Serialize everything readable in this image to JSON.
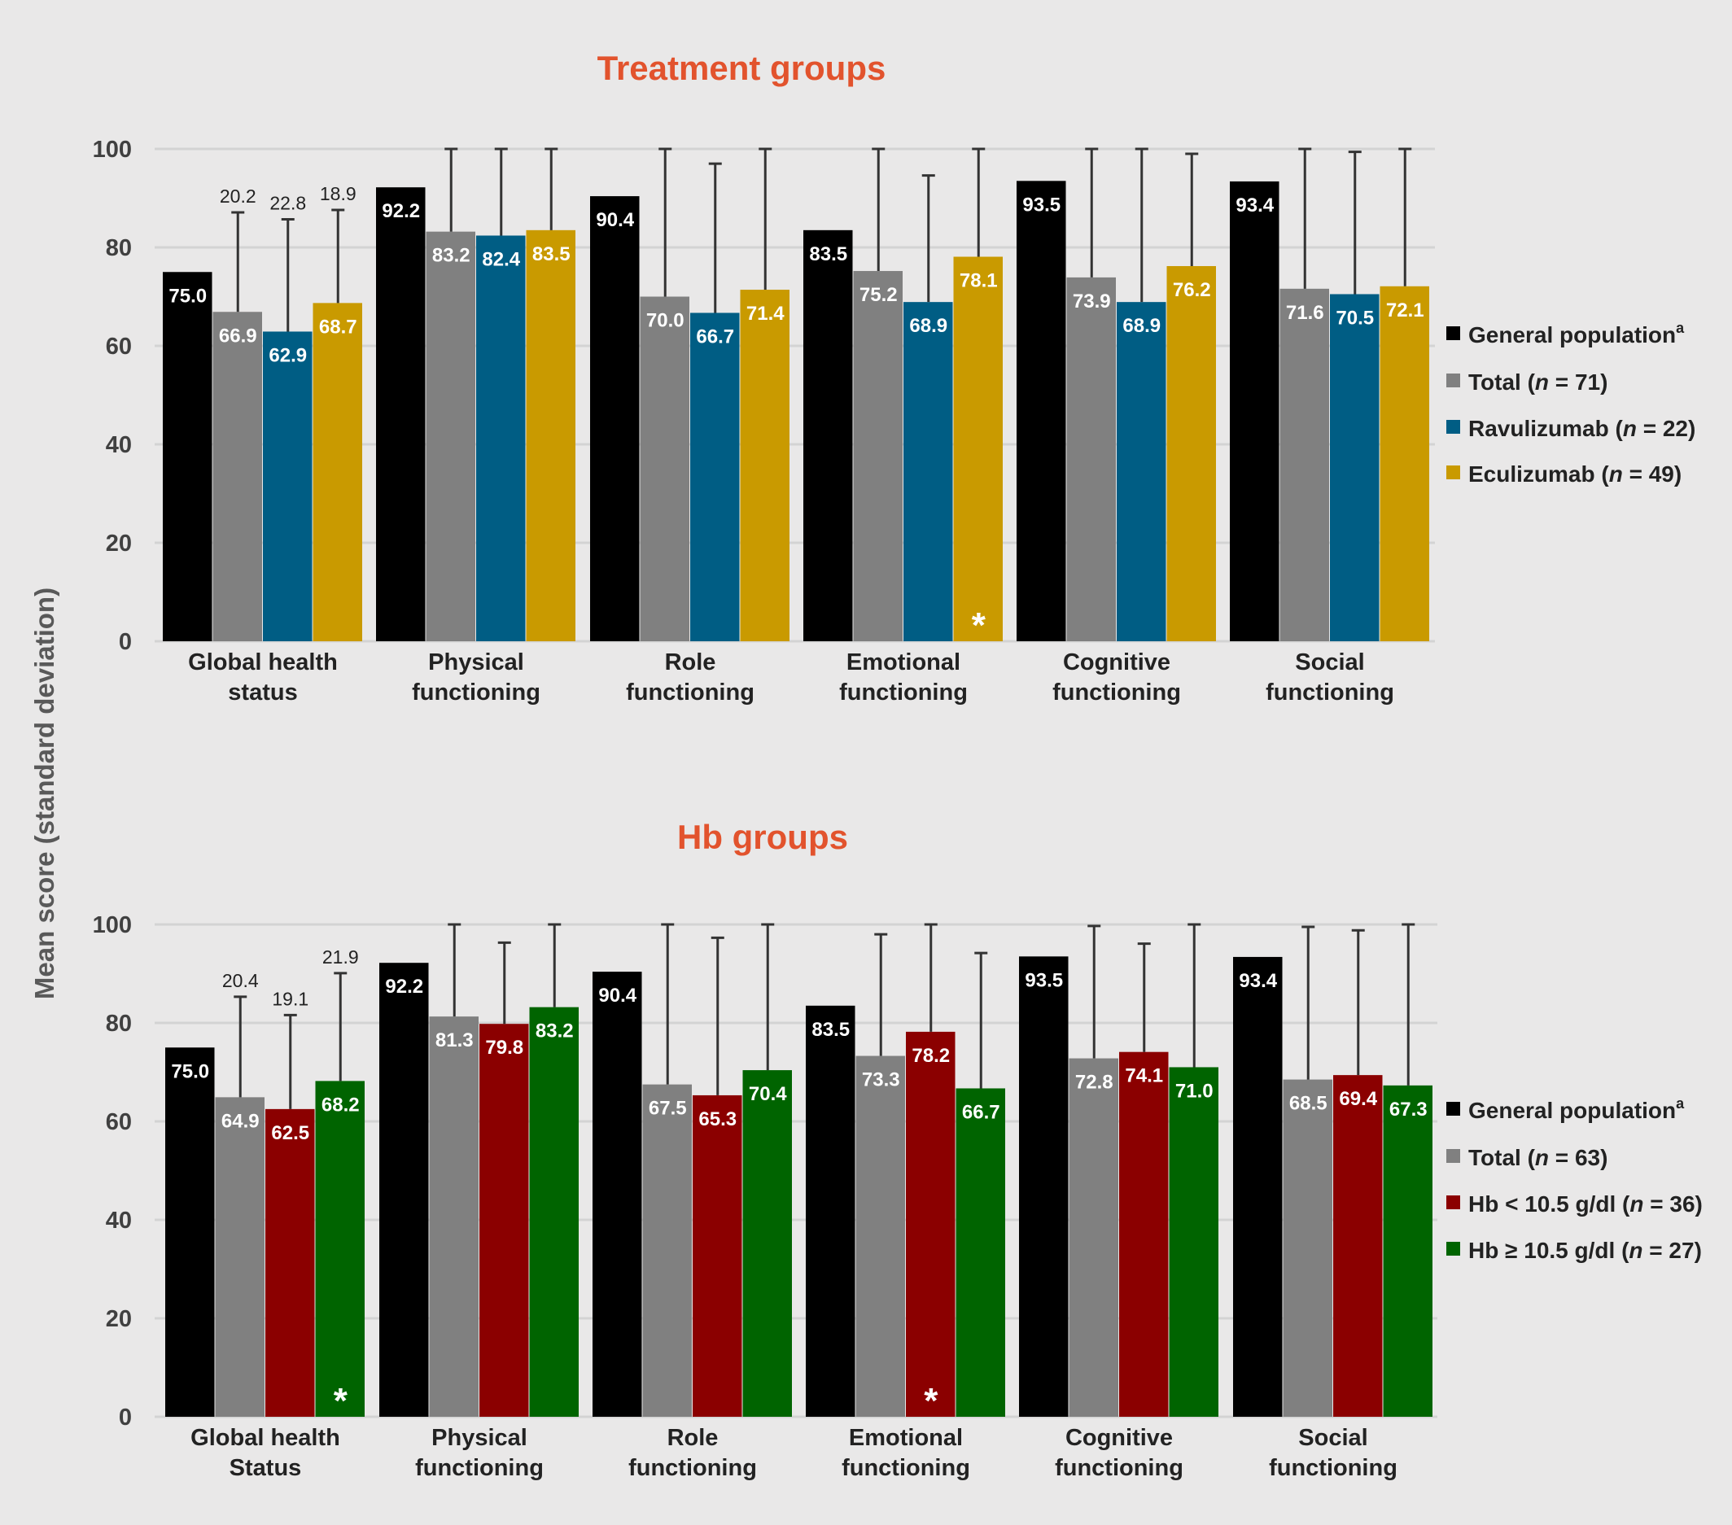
{
  "y_axis_label": "Mean score (standard deviation)",
  "colors": {
    "background": "#e9e8e8",
    "title": "#e2532d",
    "gridline": "#d3d3d3",
    "text": "#222222",
    "label_white": "#ffffff",
    "error_bar": "#333333"
  },
  "chart_data": [
    {
      "type": "bar",
      "title": "Treatment groups",
      "ylim": [
        0,
        100
      ],
      "yticks": [
        "0",
        "20",
        "40",
        "60",
        "80",
        "100"
      ],
      "grid": true,
      "legend_position": "right",
      "categories": [
        [
          "Global health",
          "status"
        ],
        [
          "Physical",
          "functioning"
        ],
        [
          "Role",
          "functioning"
        ],
        [
          "Emotional",
          "functioning"
        ],
        [
          "Cognitive",
          "functioning"
        ],
        [
          "Social",
          "functioning"
        ]
      ],
      "series": [
        {
          "name": "General population",
          "superscript": "a",
          "n_label": "",
          "color": "#000000",
          "values": [
            75.0,
            92.2,
            90.4,
            83.5,
            93.5,
            93.4
          ],
          "labels": [
            "75.0",
            "92.2",
            "90.4",
            "83.5",
            "93.5",
            "93.4"
          ],
          "sd_labels": [
            "",
            "",
            "",
            "",
            "",
            ""
          ],
          "markers": [
            "",
            "",
            "",
            "",
            "",
            ""
          ]
        },
        {
          "name": "Total (",
          "n_label": "n",
          "n_value": " = 71)",
          "color": "#808080",
          "values": [
            66.9,
            83.2,
            70.0,
            75.2,
            73.9,
            71.6
          ],
          "labels": [
            "66.9",
            "83.2",
            "70.0",
            "75.2",
            "73.9",
            "71.6"
          ],
          "sd_labels": [
            "20.2",
            "",
            "",
            "",
            "",
            ""
          ],
          "markers": [
            "",
            "",
            "",
            "",
            "",
            ""
          ]
        },
        {
          "name": "Ravulizumab (",
          "n_label": "n",
          "n_value": " = 22)",
          "color": "#005d84",
          "values": [
            62.9,
            82.4,
            66.7,
            68.9,
            68.9,
            70.5
          ],
          "labels": [
            "62.9",
            "82.4",
            "66.7",
            "68.9",
            "68.9",
            "70.5"
          ],
          "sd_labels": [
            "22.8",
            "",
            "",
            "",
            "",
            ""
          ],
          "markers": [
            "",
            "",
            "",
            "",
            "",
            ""
          ]
        },
        {
          "name": "Eculizumab (",
          "n_label": "n",
          "n_value": " = 49)",
          "color": "#c99a00",
          "values": [
            68.7,
            83.5,
            71.4,
            78.1,
            76.2,
            72.1
          ],
          "labels": [
            "68.7",
            "83.5",
            "71.4",
            "78.1",
            "76.2",
            "72.1"
          ],
          "sd_labels": [
            "18.9",
            "",
            "",
            "",
            "",
            ""
          ],
          "markers": [
            "",
            "",
            "",
            "*",
            "",
            ""
          ]
        }
      ],
      "error_tops": [
        [
          null,
          null,
          null,
          null,
          null,
          null
        ],
        [
          87.1,
          100,
          100,
          100,
          100,
          100
        ],
        [
          85.7,
          100,
          97.0,
          94.6,
          100,
          99.4
        ],
        [
          87.6,
          100,
          100,
          100,
          99.0,
          100
        ]
      ]
    },
    {
      "type": "bar",
      "title": "Hb groups",
      "ylim": [
        0,
        100
      ],
      "yticks": [
        "0",
        "20",
        "40",
        "60",
        "80",
        "100"
      ],
      "grid": true,
      "legend_position": "right",
      "categories": [
        [
          "Global health",
          "Status"
        ],
        [
          "Physical",
          "functioning"
        ],
        [
          "Role",
          "functioning"
        ],
        [
          "Emotional",
          "functioning"
        ],
        [
          "Cognitive",
          "functioning"
        ],
        [
          "Social",
          "functioning"
        ]
      ],
      "series": [
        {
          "name": "General population",
          "superscript": "a",
          "n_label": "",
          "color": "#000000",
          "values": [
            75.0,
            92.2,
            90.4,
            83.5,
            93.5,
            93.4
          ],
          "labels": [
            "75.0",
            "92.2",
            "90.4",
            "83.5",
            "93.5",
            "93.4"
          ],
          "sd_labels": [
            "",
            "",
            "",
            "",
            "",
            ""
          ],
          "markers": [
            "",
            "",
            "",
            "",
            "",
            ""
          ]
        },
        {
          "name": "Total (",
          "n_label": "n",
          "n_value": " = 63)",
          "color": "#808080",
          "values": [
            64.9,
            81.3,
            67.5,
            73.3,
            72.8,
            68.5
          ],
          "labels": [
            "64.9",
            "81.3",
            "67.5",
            "73.3",
            "72.8",
            "68.5"
          ],
          "sd_labels": [
            "20.4",
            "",
            "",
            "",
            "",
            ""
          ],
          "markers": [
            "",
            "",
            "",
            "",
            "",
            ""
          ]
        },
        {
          "name": "Hb < 10.5 g/dl  (",
          "n_label": "n",
          "n_value": " = 36)",
          "color": "#8b0000",
          "values": [
            62.5,
            79.8,
            65.3,
            78.2,
            74.1,
            69.4
          ],
          "labels": [
            "62.5",
            "79.8",
            "65.3",
            "78.2",
            "74.1",
            "69.4"
          ],
          "sd_labels": [
            "19.1",
            "",
            "",
            "",
            "",
            ""
          ],
          "markers": [
            "",
            "",
            "",
            "*",
            "",
            ""
          ]
        },
        {
          "name": "Hb ≥ 10.5 g/dl  (",
          "n_label": "n",
          "n_value": " = 27)",
          "color": "#006400",
          "values": [
            68.2,
            83.2,
            70.4,
            66.7,
            71.0,
            67.3
          ],
          "labels": [
            "68.2",
            "83.2",
            "70.4",
            "66.7",
            "71.0",
            "67.3"
          ],
          "sd_labels": [
            "21.9",
            "",
            "",
            "",
            "",
            ""
          ],
          "markers": [
            "*",
            "",
            "",
            "",
            "",
            ""
          ]
        }
      ],
      "error_tops": [
        [
          null,
          null,
          null,
          null,
          null,
          null
        ],
        [
          85.3,
          100,
          100,
          98.0,
          99.7,
          99.5
        ],
        [
          81.6,
          96.3,
          97.3,
          100,
          96.1,
          98.8
        ],
        [
          90.1,
          100,
          100,
          94.2,
          100,
          100
        ]
      ]
    }
  ]
}
